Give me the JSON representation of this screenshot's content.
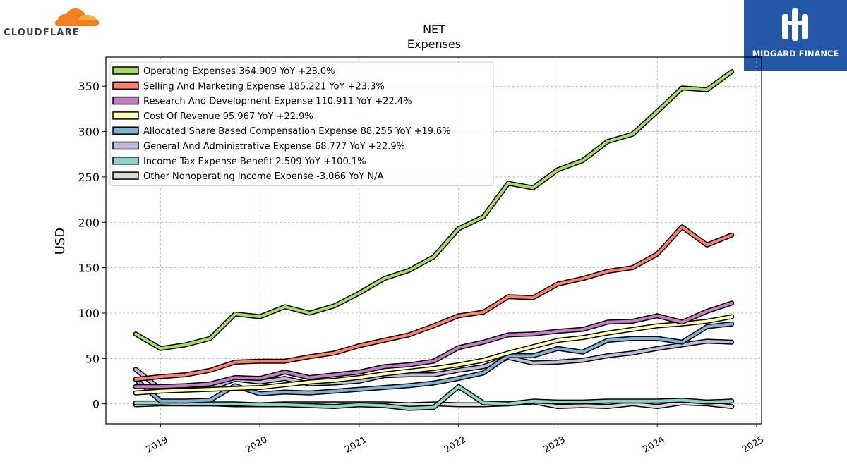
{
  "brand": {
    "left_logo_text": "CLOUDFLARE",
    "right_logo_text": "MIDGARD FINANCE"
  },
  "colors": {
    "cloudflare_orange": "#f38020",
    "cloudflare_light": "#faae40",
    "midgard_blue": "#2457a7"
  },
  "chart_data": {
    "type": "line",
    "title": "NET",
    "subtitle": "Expenses",
    "ylabel": "USD",
    "xlabel": "",
    "ylim": [
      -22,
      382
    ],
    "xlim": [
      2018.45,
      2025.05
    ],
    "yticks": [
      0,
      50,
      100,
      150,
      200,
      250,
      300,
      350
    ],
    "xticks": [
      2019,
      2020,
      2021,
      2022,
      2023,
      2024,
      2025
    ],
    "xtick_labels": [
      "2019",
      "2020",
      "2021",
      "2022",
      "2023",
      "2024",
      "2025"
    ],
    "grid": true,
    "legend_position": "top-left",
    "x": [
      2018.75,
      2019.0,
      2019.25,
      2019.5,
      2019.75,
      2020.0,
      2020.25,
      2020.5,
      2020.75,
      2021.0,
      2021.25,
      2021.5,
      2021.75,
      2022.0,
      2022.25,
      2022.5,
      2022.75,
      2023.0,
      2023.25,
      2023.5,
      2023.75,
      2024.0,
      2024.25,
      2024.5,
      2024.75
    ],
    "series": [
      {
        "name": "Operating Expenses",
        "legend": "Operating Expenses  364.909 YoY +23.0%",
        "color": "#a6d96a",
        "values": [
          77,
          61,
          65,
          72,
          99,
          96,
          107,
          100,
          108,
          122,
          138,
          147,
          162,
          193,
          206,
          243,
          238,
          258,
          268,
          289,
          297,
          322,
          348,
          346,
          366
        ]
      },
      {
        "name": "Selling And Marketing Expense",
        "legend": "Selling And Marketing Expense  185.221 YoY +23.3%",
        "color": "#fb8072",
        "values": [
          27,
          30,
          32,
          37,
          46,
          47,
          47,
          52,
          56,
          64,
          70,
          76,
          86,
          97,
          101,
          118,
          117,
          132,
          138,
          146,
          150,
          165,
          195,
          175,
          186
        ]
      },
      {
        "name": "Research And Development Expense",
        "legend": "Research And Development Expense  110.911 YoY +22.4%",
        "color": "#c27ec1",
        "values": [
          19,
          19,
          20,
          22,
          29,
          28,
          35,
          29,
          32,
          35,
          41,
          43,
          47,
          62,
          68,
          76,
          77,
          80,
          82,
          90,
          91,
          97,
          90,
          102,
          111
        ]
      },
      {
        "name": "Cost Of Revenue",
        "legend": "Cost Of Revenue  95.967 YoY +22.9%",
        "color": "#ffffb3",
        "values": [
          12,
          14,
          15,
          16,
          17,
          18,
          21,
          24,
          26,
          29,
          33,
          36,
          39,
          43,
          48,
          56,
          63,
          70,
          73,
          78,
          82,
          86,
          88,
          91,
          96
        ]
      },
      {
        "name": "Allocated Share Based Compensation Expense",
        "legend": "Allocated Share Based Compensation Expense  88.255 YoY +19.6%",
        "color": "#80b1d3",
        "values": [
          27,
          3,
          3,
          4,
          20,
          11,
          13,
          12,
          14,
          16,
          18,
          20,
          23,
          28,
          34,
          53,
          53,
          61,
          57,
          70,
          72,
          72,
          68,
          85,
          88
        ]
      },
      {
        "name": "General And Administrative Expense",
        "legend": "General And Administrative Expense  68.777 YoY +22.9%",
        "color": "#bebada",
        "values": [
          38,
          16,
          16,
          17,
          27,
          24,
          28,
          22,
          23,
          25,
          31,
          32,
          32,
          37,
          41,
          51,
          45,
          46,
          48,
          53,
          56,
          61,
          65,
          69,
          68
        ]
      },
      {
        "name": "Income Tax Expense Benefit",
        "legend": "Income Tax Expense Benefit  2.509 YoY +100.1%",
        "color": "#8dd3c7",
        "values": [
          1,
          1,
          0,
          0,
          0,
          -1,
          -1,
          -2,
          -3,
          -1,
          -2,
          -5,
          -4,
          19,
          1,
          0,
          3,
          2,
          2,
          3,
          3,
          3,
          4,
          2,
          3
        ]
      },
      {
        "name": "Other Nonoperating Income Expense",
        "legend": "Other Nonoperating Income Expense  -3.066 YoY N/A",
        "color": "#d9d9d9",
        "values": [
          -1,
          0,
          0,
          0,
          -1,
          -1,
          0,
          0,
          0,
          0,
          0,
          -1,
          0,
          -1,
          -1,
          0,
          2,
          -3,
          -2,
          -3,
          0,
          -3,
          1,
          0,
          -3
        ]
      }
    ]
  }
}
